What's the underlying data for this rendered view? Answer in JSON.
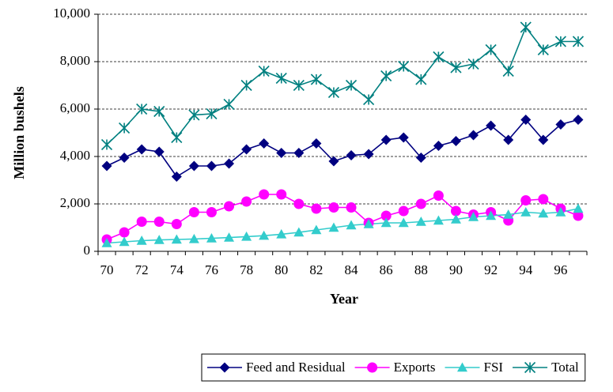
{
  "chart_data": {
    "type": "line",
    "x_label": "Year",
    "y_label": "Million bushels",
    "categories": [
      "70",
      null,
      "72",
      null,
      "74",
      null,
      "76",
      null,
      "78",
      null,
      "80",
      null,
      "82",
      null,
      "84",
      null,
      "86",
      null,
      "88",
      null,
      "90",
      null,
      "92",
      null,
      "94",
      null,
      "96",
      null
    ],
    "ylim": [
      0,
      10000
    ],
    "yticks": [
      0,
      {
        "value": 2000,
        "label": "2,000"
      },
      {
        "value": 4000,
        "label": "4,000"
      },
      {
        "value": 6000,
        "label": "6,000"
      },
      {
        "value": 8000,
        "label": "8,000"
      },
      {
        "value": 10000,
        "label": "10,000"
      }
    ],
    "grid": true,
    "legend": "bottom",
    "series": [
      {
        "name": "Feed and Residual",
        "color": "#000080",
        "marker": "diamond",
        "values": [
          3600,
          3950,
          4300,
          4200,
          3150,
          3600,
          3600,
          3700,
          4300,
          4550,
          4150,
          4150,
          4550,
          3800,
          4050,
          4100,
          4700,
          4800,
          3950,
          4450,
          4650,
          4900,
          5300,
          4700,
          5550,
          4700,
          5350,
          5550
        ]
      },
      {
        "name": "Exports",
        "color": "#ff00ff",
        "marker": "circle",
        "values": [
          500,
          800,
          1250,
          1250,
          1150,
          1650,
          1650,
          1900,
          2100,
          2400,
          2400,
          2000,
          1800,
          1850,
          1850,
          1200,
          1500,
          1700,
          2000,
          2350,
          1700,
          1550,
          1650,
          1300,
          2150,
          2200,
          1800,
          1500
        ]
      },
      {
        "name": "FSI",
        "color": "#33cccc",
        "marker": "triangle",
        "values": [
          350,
          400,
          450,
          480,
          500,
          520,
          550,
          580,
          620,
          660,
          720,
          800,
          900,
          1000,
          1100,
          1150,
          1200,
          1200,
          1250,
          1300,
          1350,
          1450,
          1500,
          1550,
          1650,
          1600,
          1650,
          1800
        ]
      },
      {
        "name": "Total",
        "color": "#008080",
        "marker": "asterisk",
        "values": [
          4500,
          5200,
          6000,
          5900,
          4800,
          5750,
          5800,
          6200,
          7000,
          7600,
          7300,
          7000,
          7250,
          6700,
          7000,
          6400,
          7400,
          7800,
          7250,
          8200,
          7750,
          7900,
          8500,
          7600,
          9450,
          8500,
          8850,
          8850
        ]
      }
    ]
  }
}
